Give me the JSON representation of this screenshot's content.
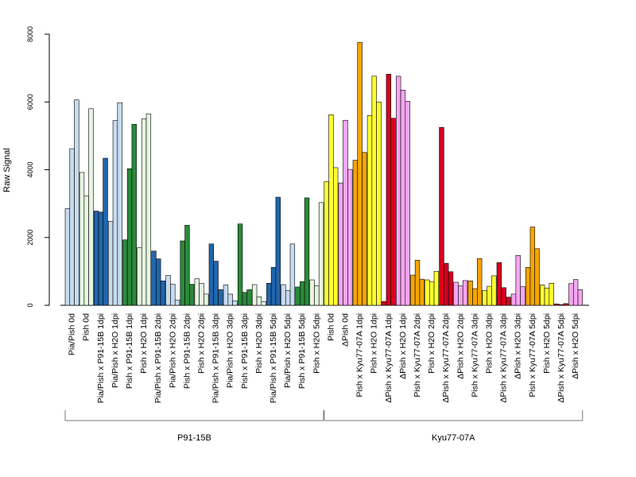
{
  "chart_data": {
    "type": "bar",
    "ylabel": "Raw Signal",
    "ylim": [
      0,
      8000
    ],
    "yticks": [
      0,
      2000,
      4000,
      6000,
      8000
    ],
    "colors": {
      "lightblue": "#c6dbef",
      "lightgreen": "#e5f5e0",
      "blue": "#2166ac",
      "green": "#2a8a3a",
      "yellow": "#ffff33",
      "pink": "#f4a6f0",
      "orange": "#f5a500",
      "red": "#d7001f"
    },
    "groups": [
      {
        "label": "Pia/Pish 0d",
        "color": "lightblue",
        "values": [
          2850,
          4620,
          6060
        ]
      },
      {
        "label": "Pish 0d",
        "color": "lightgreen",
        "values": [
          3920,
          3220,
          5800
        ]
      },
      {
        "label": "Pia/Pish x P91-15B 1dpi",
        "color": "blue",
        "values": [
          2780,
          2750,
          4340
        ]
      },
      {
        "label": "Pia/Pish x H2O 1dpi",
        "color": "lightblue",
        "values": [
          2480,
          5450,
          5980
        ]
      },
      {
        "label": "Pish x P91-15B 1dpi",
        "color": "green",
        "values": [
          1930,
          4030,
          5340
        ]
      },
      {
        "label": "Pish x H2O 1dpi",
        "color": "lightgreen",
        "values": [
          1700,
          5500,
          5650
        ]
      },
      {
        "label": "Pia/Pish x P91-15B 2dpi",
        "color": "blue",
        "values": [
          1600,
          1370,
          720
        ]
      },
      {
        "label": "Pia/Pish x H2O 2dpi",
        "color": "lightblue",
        "values": [
          880,
          620,
          150
        ]
      },
      {
        "label": "Pish x P91-15B 2dpi",
        "color": "green",
        "values": [
          1900,
          2360,
          620
        ]
      },
      {
        "label": "Pish x H2O 2dpi",
        "color": "lightgreen",
        "values": [
          780,
          650,
          330
        ]
      },
      {
        "label": "Pia/Pish x P91-15B 3dpi",
        "color": "blue",
        "values": [
          1810,
          1300,
          460
        ]
      },
      {
        "label": "Pia/Pish x H2O 3dpi",
        "color": "lightblue",
        "values": [
          600,
          330,
          130
        ]
      },
      {
        "label": "Pish x P91-15B 3dpi",
        "color": "green",
        "values": [
          2400,
          380,
          460
        ]
      },
      {
        "label": "Pish x H2O 3dpi",
        "color": "lightgreen",
        "values": [
          610,
          250,
          110
        ]
      },
      {
        "label": "Pia/Pish x P91-15B 5dpi",
        "color": "blue",
        "values": [
          650,
          1120,
          3190
        ]
      },
      {
        "label": "Pia/Pish x H2O 5dpi",
        "color": "lightblue",
        "values": [
          610,
          440,
          1810
        ]
      },
      {
        "label": "Pish x P91-15B 5dpi",
        "color": "green",
        "values": [
          540,
          700,
          3170
        ]
      },
      {
        "label": "Pish x H2O 5dpi",
        "color": "lightgreen",
        "values": [
          750,
          580,
          3030
        ]
      },
      {
        "label": "Pish 0d",
        "color": "yellow",
        "values": [
          3650,
          5620,
          4060
        ]
      },
      {
        "label": "ΔPish 0d",
        "color": "pink",
        "values": [
          3610,
          5460,
          4010
        ]
      },
      {
        "label": "Pish x Kyu77-07A 1dpi",
        "color": "orange",
        "values": [
          4280,
          7760,
          4510
        ]
      },
      {
        "label": "Pish x H2O 1dpi",
        "color": "yellow",
        "values": [
          5600,
          6760,
          6000
        ]
      },
      {
        "label": "ΔPish x Kyu77-07A 1dpi",
        "color": "red",
        "values": [
          110,
          6820,
          5520
        ]
      },
      {
        "label": "ΔPish x H2O 1dpi",
        "color": "pink",
        "values": [
          6760,
          6350,
          6020
        ]
      },
      {
        "label": "Pish x Kyu77-07A 2dpi",
        "color": "orange",
        "values": [
          890,
          1330,
          770
        ]
      },
      {
        "label": "Pish x H2O 2dpi",
        "color": "yellow",
        "values": [
          750,
          700,
          1000
        ]
      },
      {
        "label": "ΔPish x Kyu77-07A 2dpi",
        "color": "red",
        "values": [
          5250,
          1240,
          990
        ]
      },
      {
        "label": "ΔPish x H2O 2dpi",
        "color": "pink",
        "values": [
          680,
          570,
          730
        ]
      },
      {
        "label": "Pish x Kyu77-07A 3dpi",
        "color": "orange",
        "values": [
          720,
          490,
          1380
        ]
      },
      {
        "label": "Pish x H2O 3dpi",
        "color": "yellow",
        "values": [
          440,
          560,
          870
        ]
      },
      {
        "label": "ΔPish x Kyu77-07A 3dpi",
        "color": "red",
        "values": [
          1260,
          520,
          240
        ]
      },
      {
        "label": "ΔPish x H2O 3dpi",
        "color": "pink",
        "values": [
          330,
          1470,
          550
        ]
      },
      {
        "label": "Pish x Kyu77-07A 5dpi",
        "color": "orange",
        "values": [
          1120,
          2310,
          1670
        ]
      },
      {
        "label": "Pish x H2O 5dpi",
        "color": "yellow",
        "values": [
          600,
          510,
          650
        ]
      },
      {
        "label": "ΔPish x Kyu77-07A 5dpi",
        "color": "red",
        "values": [
          40,
          20,
          50
        ]
      },
      {
        "label": "ΔPish x H2O 5dpi",
        "color": "pink",
        "values": [
          640,
          760,
          460
        ]
      }
    ],
    "brackets": [
      {
        "label": "P91-15B",
        "from_group": 0,
        "to_group": 17
      },
      {
        "label": "Kyu77-07A",
        "from_group": 18,
        "to_group": 35
      }
    ]
  }
}
